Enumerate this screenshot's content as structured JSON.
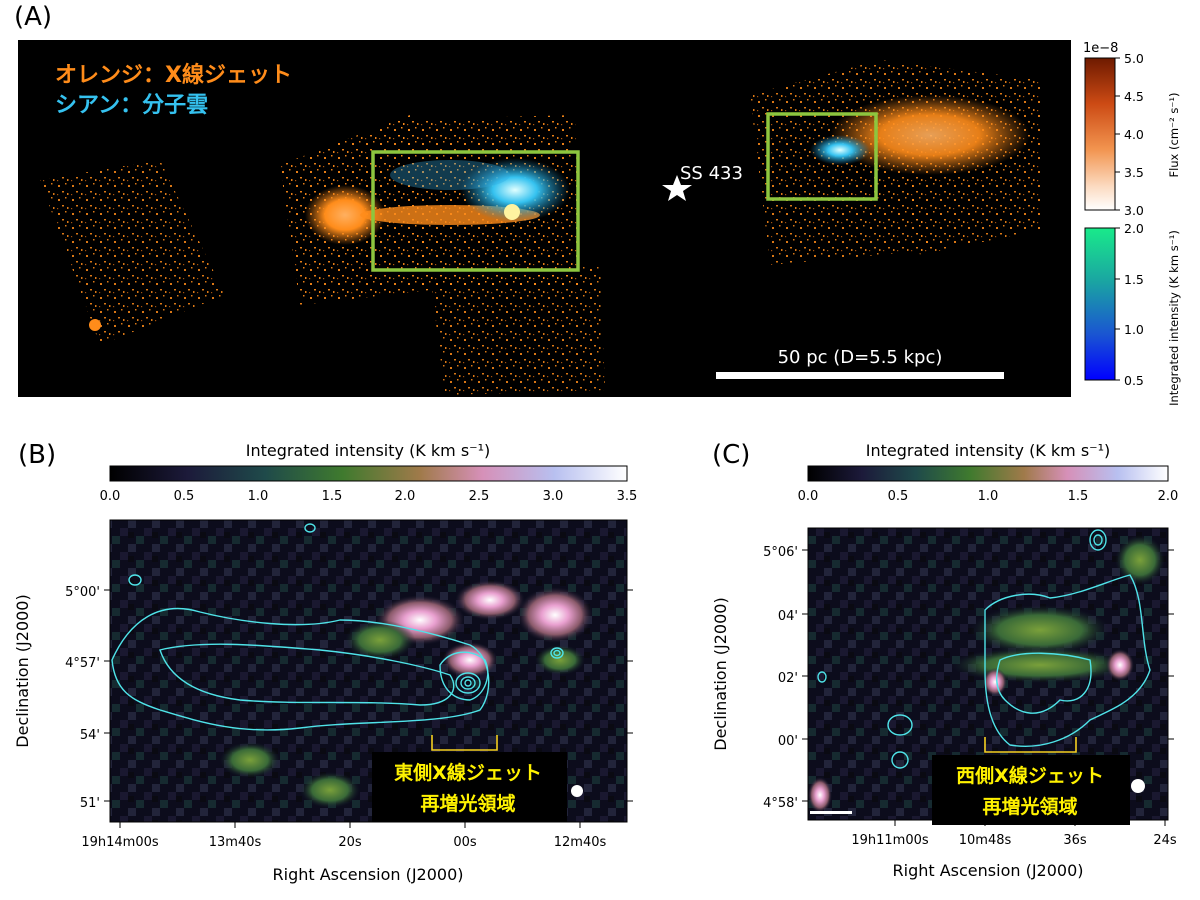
{
  "panel_a": {
    "letter": "(A)",
    "legend_orange": "オレンジ：X線ジェット",
    "legend_cyan": "シアン：分子雲",
    "star_label": "SS 433",
    "scalebar_label": "50 pc (D=5.5 kpc)",
    "colorbar_flux": {
      "exponent": "1e−8",
      "label": "Flux (cm⁻² s⁻¹)",
      "ticks": [
        "5.0",
        "4.5",
        "4.0",
        "3.5",
        "3.0"
      ],
      "colors": [
        "#7a1f00",
        "#d4501a",
        "#f08a4b",
        "#fbd3b4",
        "#ffffff"
      ]
    },
    "colorbar_int": {
      "label": "Integrated intensity (K km s⁻¹)",
      "ticks": [
        "2.0",
        "1.5",
        "1.0",
        "0.5"
      ],
      "colors": [
        "#19e68c",
        "#1aa7a0",
        "#1a5ad0",
        "#0000ff"
      ]
    },
    "colors": {
      "orange": "#ff8c1a",
      "cyan": "#35c2f0",
      "box": "#8dc63f"
    }
  },
  "panel_b": {
    "letter": "(B)",
    "colorbar_label": "Integrated intensity (K km s⁻¹)",
    "colorbar_ticks": [
      "0.0",
      "0.5",
      "1.0",
      "1.5",
      "2.0",
      "2.5",
      "3.0",
      "3.5"
    ],
    "y_ticks": [
      "5°00'",
      "4°57'",
      "54'",
      "51'"
    ],
    "x_ticks": [
      "19h14m00s",
      "13m40s",
      "20s",
      "00s",
      "12m40s"
    ],
    "xlabel": "Right Ascension (J2000)",
    "ylabel": "Declination (J2000)",
    "region_line1": "東側X線ジェット",
    "region_line2": "再増光領域"
  },
  "panel_c": {
    "letter": "(C)",
    "colorbar_label": "Integrated intensity (K km s⁻¹)",
    "colorbar_ticks": [
      "0.0",
      "0.5",
      "1.0",
      "1.5",
      "2.0"
    ],
    "y_ticks": [
      "5°06'",
      "04'",
      "02'",
      "00'",
      "4°58'"
    ],
    "x_ticks": [
      "19h11m00s",
      "10m48s",
      "36s",
      "24s"
    ],
    "xlabel": "Right Ascension (J2000)",
    "ylabel": "Declination (J2000)",
    "region_line1": "西側X線ジェット",
    "region_line2": "再増光領域"
  }
}
